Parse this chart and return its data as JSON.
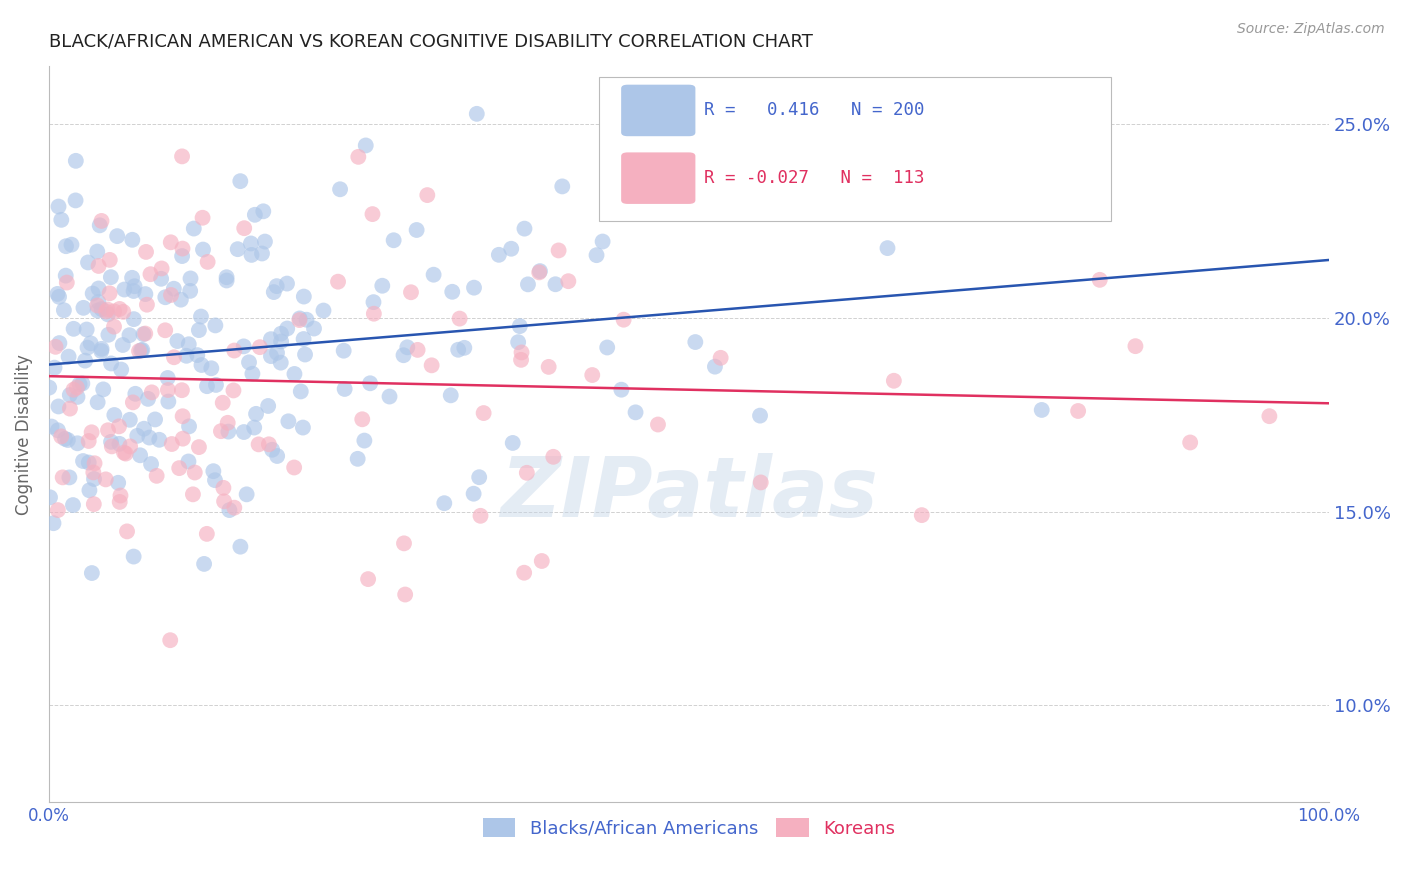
{
  "title": "BLACK/AFRICAN AMERICAN VS KOREAN COGNITIVE DISABILITY CORRELATION CHART",
  "source": "Source: ZipAtlas.com",
  "xlabel": "",
  "ylabel": "Cognitive Disability",
  "xlim": [
    0,
    100
  ],
  "ylim": [
    7.5,
    26.5
  ],
  "yticks": [
    10.0,
    15.0,
    20.0,
    25.0
  ],
  "xticks": [
    0,
    100
  ],
  "blue_R": 0.416,
  "blue_N": 200,
  "pink_R": -0.027,
  "pink_N": 113,
  "blue_color": "#adc6e8",
  "pink_color": "#f5b0c0",
  "blue_line_color": "#2855b0",
  "pink_line_color": "#e03060",
  "legend_label_blue": "Blacks/African Americans",
  "legend_label_pink": "Koreans",
  "watermark_text": "ZIPatlas",
  "background_color": "#ffffff",
  "grid_color": "#cccccc",
  "title_color": "#222222",
  "axis_label_color": "#666666",
  "tick_label_color": "#4466cc",
  "blue_trendline_y0": 18.8,
  "blue_trendline_y1": 21.5,
  "pink_trendline_y0": 18.5,
  "pink_trendline_y1": 17.8
}
